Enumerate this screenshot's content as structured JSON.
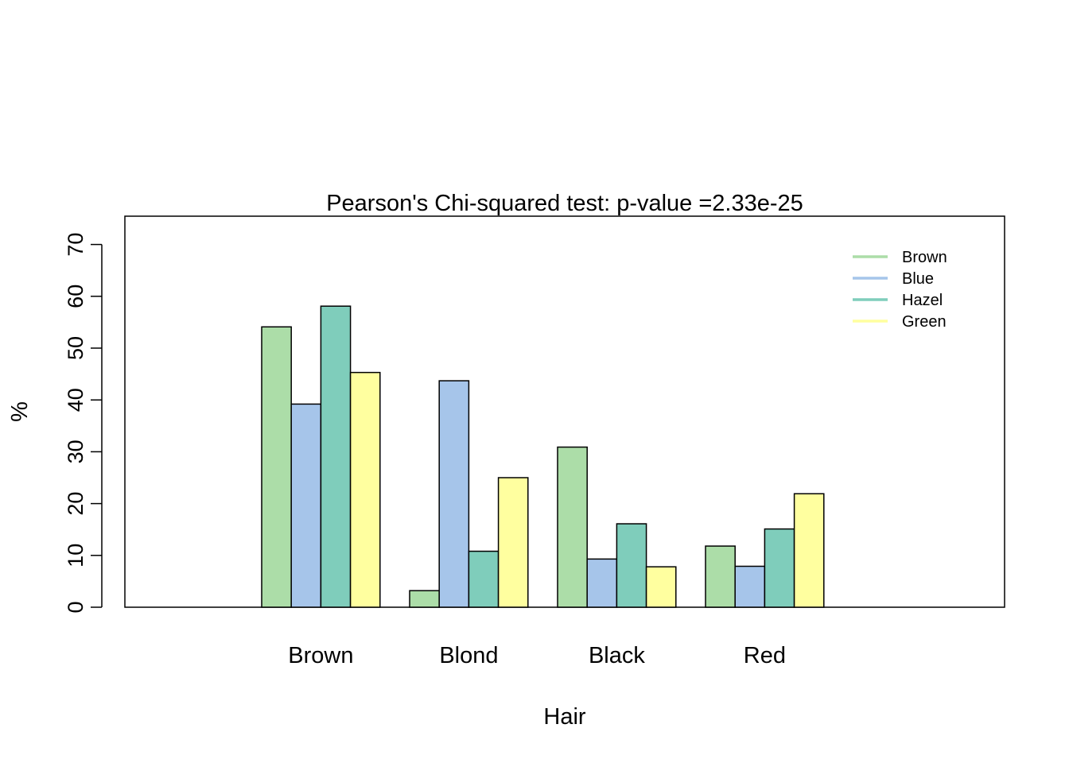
{
  "chart_data": {
    "type": "bar",
    "title": "Pearson's Chi-squared test: p-value =2.33e-25",
    "xlabel": "Hair",
    "ylabel": "%",
    "categories": [
      "Brown",
      "Blond",
      "Black",
      "Red"
    ],
    "series": [
      {
        "name": "Brown",
        "color": "#acdda8",
        "values": [
          54.1,
          3.2,
          30.9,
          11.8
        ]
      },
      {
        "name": "Blue",
        "color": "#a6c5ea",
        "values": [
          39.2,
          43.7,
          9.3,
          7.9
        ]
      },
      {
        "name": "Hazel",
        "color": "#7fcdbb",
        "values": [
          58.1,
          10.8,
          16.1,
          15.1
        ]
      },
      {
        "name": "Green",
        "color": "#ffff9f",
        "values": [
          45.3,
          25.0,
          7.8,
          21.9
        ]
      }
    ],
    "ylim": [
      0,
      70
    ],
    "yticks": [
      0,
      10,
      20,
      30,
      40,
      50,
      60,
      70
    ],
    "legend": {
      "position": "top-right",
      "entries": [
        "Brown",
        "Blue",
        "Hazel",
        "Green"
      ]
    },
    "grid": false
  }
}
